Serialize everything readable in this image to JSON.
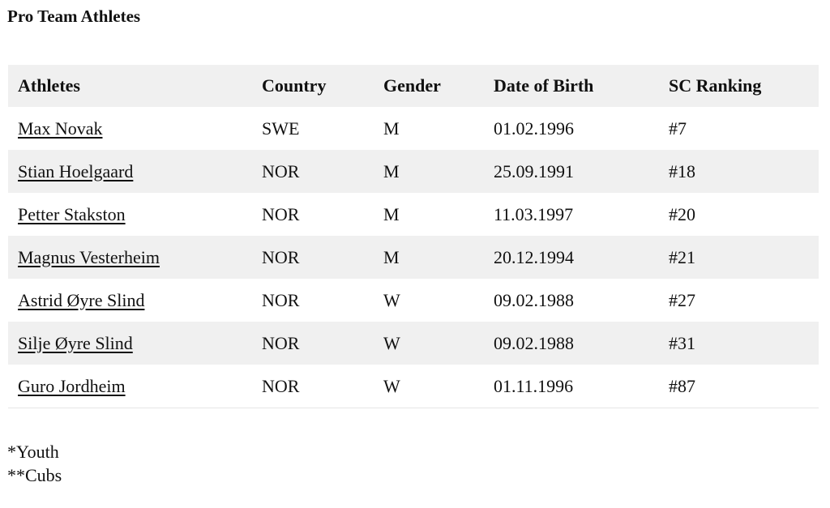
{
  "header": {
    "title": "Pro Team Athletes"
  },
  "table": {
    "columns": [
      "Athletes",
      "Country",
      "Gender",
      "Date of Birth",
      "SC Ranking"
    ],
    "rows": [
      [
        "Max Novak",
        "SWE",
        "M",
        "01.02.1996",
        "#7"
      ],
      [
        "Stian Hoelgaard",
        "NOR",
        "M",
        "25.09.1991",
        "#18"
      ],
      [
        "Petter Stakston",
        "NOR",
        "M",
        "11.03.1997",
        "#20"
      ],
      [
        "Magnus Vesterheim",
        "NOR",
        "M",
        "20.12.1994",
        "#21"
      ],
      [
        "Astrid Øyre Slind",
        "NOR",
        "W",
        "09.02.1988",
        "#27"
      ],
      [
        "Silje Øyre Slind",
        "NOR",
        "W",
        "09.02.1988",
        "#31"
      ],
      [
        "Guro Jordheim",
        "NOR",
        "W",
        "01.11.1996",
        "#87"
      ]
    ]
  },
  "footnotes": [
    "*Youth",
    "**Cubs"
  ]
}
